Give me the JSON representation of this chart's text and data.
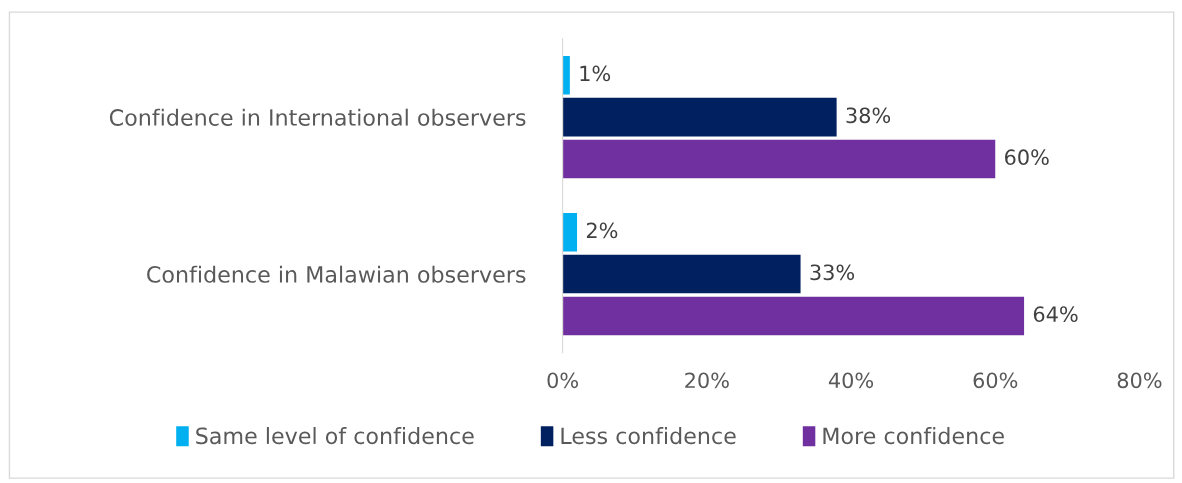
{
  "chart_data": {
    "type": "bar",
    "orientation": "horizontal",
    "categories": [
      "Confidence in International observers",
      "Confidence in Malawian observers"
    ],
    "series": [
      {
        "name": "Same level of confidence",
        "color": "#00b0f0",
        "values": [
          1,
          2
        ],
        "value_labels": [
          "1%",
          "2%"
        ]
      },
      {
        "name": "Less confidence",
        "color": "#002060",
        "values": [
          38,
          33
        ],
        "value_labels": [
          "38%",
          "33%"
        ]
      },
      {
        "name": "More confidence",
        "color": "#7030a0",
        "values": [
          60,
          64
        ],
        "value_labels": [
          "60%",
          "64%"
        ]
      }
    ],
    "xlim": [
      0,
      80
    ],
    "xticks": [
      {
        "value": 0,
        "label": "0%"
      },
      {
        "value": 20,
        "label": "20%"
      },
      {
        "value": 40,
        "label": "40%"
      },
      {
        "value": 60,
        "label": "60%"
      },
      {
        "value": 80,
        "label": "80%"
      }
    ],
    "grid": false,
    "legend": "bottom"
  }
}
